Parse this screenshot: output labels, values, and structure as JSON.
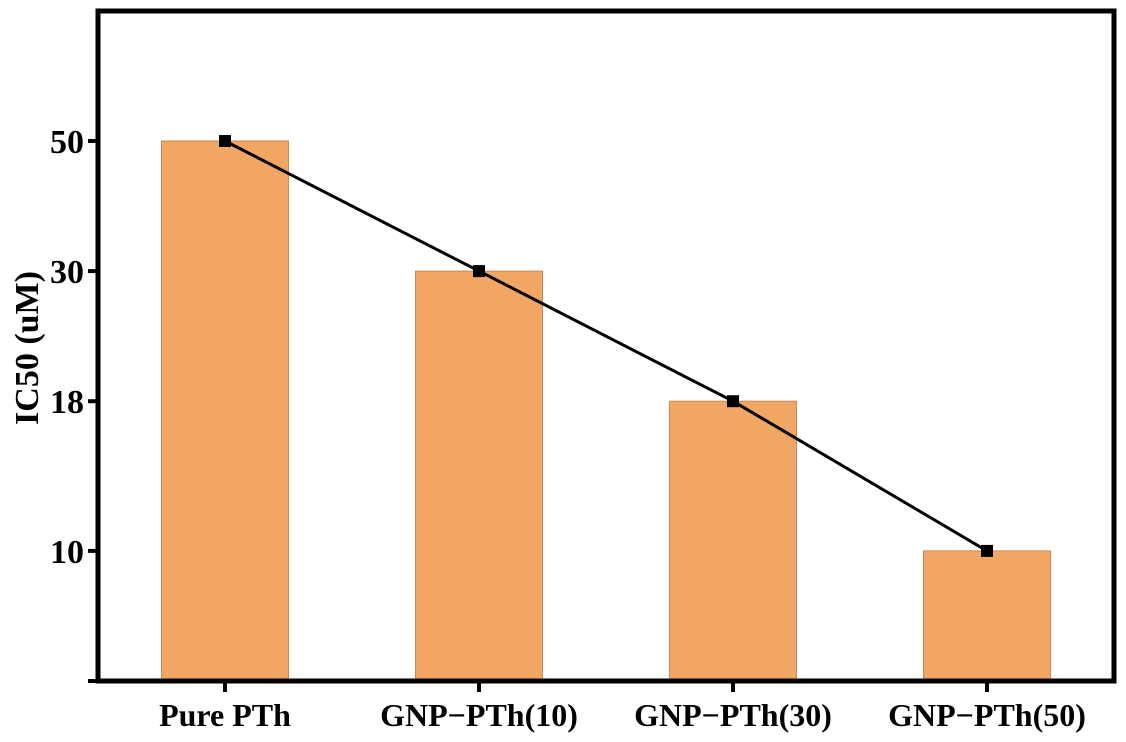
{
  "chart_data": {
    "type": "bar",
    "categories": [
      "Pure PTh",
      "GNP−PTh(10)",
      "GNP−PTh(30)",
      "GNP−PTh(50)"
    ],
    "values": [
      50,
      30,
      18,
      10
    ],
    "line_overlay": true,
    "title": "",
    "xlabel": "",
    "ylabel": "IC50 (uM)",
    "yticks": [
      10,
      18,
      30,
      50
    ],
    "ytick_labels": [
      "10",
      "18",
      "30",
      "50"
    ],
    "scale": "log",
    "ylim": [
      6,
      83.3
    ],
    "grid": false,
    "legend": "none",
    "colors": {
      "bar_fill": "#F2A664",
      "bar_edge": "#C98A55",
      "line": "#000000",
      "marker": "#000000",
      "frame": "#000000"
    }
  }
}
